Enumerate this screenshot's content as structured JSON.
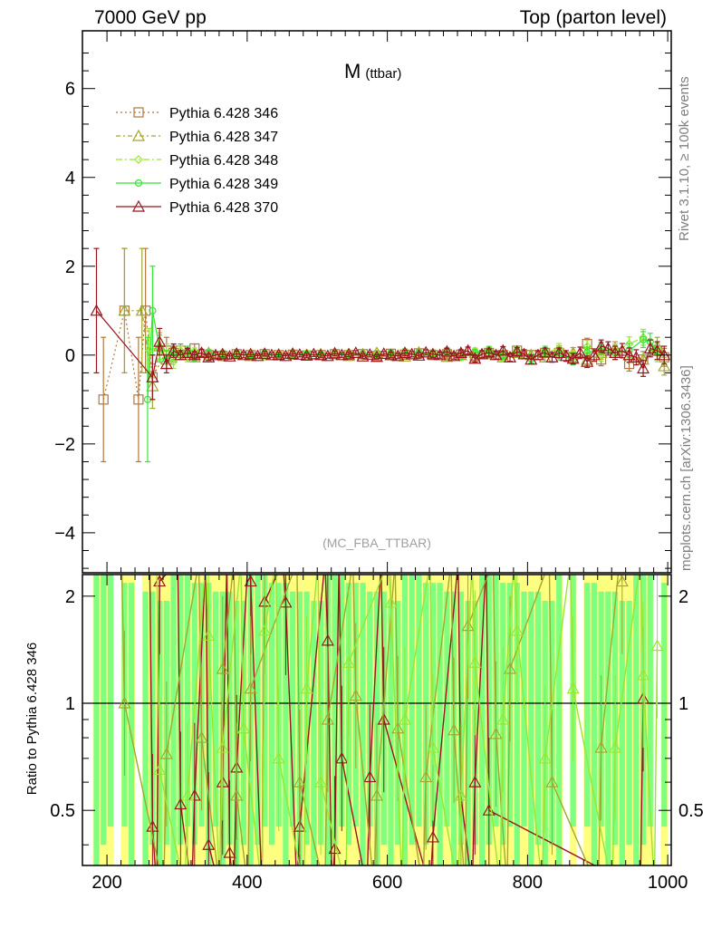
{
  "header": {
    "left": "7000 GeV pp",
    "right": "Top (parton level)"
  },
  "side_labels": {
    "rivet": "Rivet 3.1.10, ≥ 100k events",
    "mcplots": "mcplots.cern.ch [arXiv:1306.3436]"
  },
  "chart_data": [
    {
      "type": "line",
      "title": "M",
      "title_sub": "(ttbar)",
      "analysis_tag": "(MC_FBA_TTBAR)",
      "xlim": [
        165,
        1005
      ],
      "ylim": [
        -4.9,
        7.3
      ],
      "x_ticks": [
        200,
        400,
        600,
        800,
        1000
      ],
      "y_ticks": [
        -4,
        -2,
        0,
        2,
        4,
        6
      ],
      "y_tick_labels": [
        "−4",
        "−2",
        "0",
        "2",
        "4",
        "6"
      ],
      "legend_position": "top-left",
      "series": [
        {
          "name": "Pythia 6.428 346",
          "color": "#b2773c",
          "marker": "square",
          "dash": "2,3",
          "x": [
            195,
            225,
            245,
            255,
            265,
            285,
            295,
            305,
            315,
            325,
            345,
            365,
            385,
            405,
            425,
            445,
            465,
            485,
            505,
            525,
            545,
            565,
            585,
            605,
            625,
            645,
            665,
            685,
            705,
            725,
            745,
            765,
            785,
            805,
            825,
            845,
            865,
            885,
            905,
            925,
            945,
            965,
            985,
            995
          ],
          "y": [
            -1.0,
            1.0,
            -1.0,
            1.0,
            -0.5,
            0.1,
            0.05,
            0.1,
            0.0,
            0.15,
            0.0,
            -0.02,
            0.02,
            0.0,
            0.02,
            0.0,
            0.01,
            -0.01,
            0.0,
            0.02,
            0.0,
            0.02,
            -0.02,
            0.03,
            0.01,
            0.04,
            0.0,
            0.02,
            0.01,
            -0.03,
            0.05,
            0.0,
            0.1,
            0.0,
            0.05,
            0.05,
            -0.05,
            0.25,
            -0.1,
            0.05,
            -0.2,
            -0.1,
            0.1,
            -0.05
          ],
          "err": [
            1.4,
            1.4,
            1.4,
            1.4,
            0.5,
            0.3,
            0.2,
            0.15,
            0.1,
            0.1,
            0.08,
            0.06,
            0.06,
            0.05,
            0.05,
            0.05,
            0.05,
            0.05,
            0.05,
            0.05,
            0.05,
            0.05,
            0.05,
            0.06,
            0.06,
            0.06,
            0.07,
            0.07,
            0.07,
            0.08,
            0.08,
            0.09,
            0.09,
            0.1,
            0.1,
            0.11,
            0.12,
            0.13,
            0.14,
            0.15,
            0.16,
            0.18,
            0.2,
            0.2
          ]
        },
        {
          "name": "Pythia 6.428 347",
          "color": "#a5a52f",
          "marker": "triangle",
          "dash": "5,3,2,3",
          "x": [
            225,
            250,
            265,
            275,
            285,
            295,
            305,
            315,
            325,
            345,
            365,
            385,
            405,
            425,
            445,
            465,
            485,
            505,
            525,
            545,
            565,
            585,
            605,
            625,
            645,
            665,
            685,
            705,
            725,
            745,
            765,
            785,
            805,
            825,
            845,
            865,
            885,
            905,
            925,
            945,
            965,
            985,
            995
          ],
          "y": [
            1.0,
            1.0,
            -0.7,
            0.2,
            -0.1,
            0.1,
            0.0,
            0.05,
            -0.05,
            0.05,
            0.0,
            0.03,
            -0.02,
            0.02,
            -0.01,
            0.03,
            0.0,
            0.02,
            0.04,
            -0.02,
            0.02,
            0.05,
            0.0,
            -0.03,
            0.06,
            0.02,
            -0.04,
            0.0,
            0.05,
            0.02,
            -0.05,
            0.05,
            0.0,
            -0.05,
            0.1,
            0.05,
            -0.1,
            0.05,
            0.15,
            0.0,
            -0.1,
            0.2,
            -0.25
          ],
          "err": [
            1.4,
            1.4,
            0.5,
            0.3,
            0.2,
            0.15,
            0.1,
            0.1,
            0.08,
            0.07,
            0.06,
            0.06,
            0.05,
            0.05,
            0.05,
            0.05,
            0.05,
            0.05,
            0.05,
            0.05,
            0.05,
            0.05,
            0.06,
            0.06,
            0.06,
            0.07,
            0.07,
            0.07,
            0.08,
            0.08,
            0.09,
            0.09,
            0.1,
            0.1,
            0.11,
            0.12,
            0.13,
            0.14,
            0.15,
            0.16,
            0.18,
            0.2,
            0.2
          ]
        },
        {
          "name": "Pythia 6.428 348",
          "color": "#99e632",
          "marker": "diamond",
          "dash": "7,3,2,3",
          "x": [
            260,
            275,
            285,
            295,
            305,
            315,
            325,
            345,
            365,
            385,
            405,
            425,
            445,
            465,
            485,
            505,
            525,
            545,
            565,
            585,
            605,
            625,
            645,
            665,
            685,
            705,
            725,
            745,
            765,
            785,
            805,
            825,
            845,
            865,
            885,
            905,
            925,
            945,
            965,
            985
          ],
          "y": [
            0.1,
            0.2,
            0.05,
            -0.15,
            0.1,
            -0.05,
            0.08,
            -0.03,
            0.05,
            0.0,
            0.03,
            -0.03,
            0.04,
            0.0,
            0.05,
            -0.02,
            0.03,
            0.06,
            -0.03,
            0.02,
            -0.04,
            0.08,
            0.0,
            0.05,
            0.1,
            -0.05,
            0.08,
            0.12,
            -0.05,
            0.1,
            -0.1,
            0.05,
            0.15,
            -0.05,
            0.2,
            0.0,
            0.1,
            0.25,
            0.4,
            0.05
          ],
          "err": [
            0.5,
            0.3,
            0.2,
            0.15,
            0.1,
            0.1,
            0.08,
            0.07,
            0.06,
            0.06,
            0.05,
            0.05,
            0.05,
            0.05,
            0.05,
            0.05,
            0.05,
            0.05,
            0.05,
            0.05,
            0.06,
            0.06,
            0.06,
            0.07,
            0.07,
            0.07,
            0.08,
            0.08,
            0.09,
            0.09,
            0.1,
            0.1,
            0.11,
            0.12,
            0.13,
            0.14,
            0.15,
            0.16,
            0.18,
            0.2
          ]
        },
        {
          "name": "Pythia 6.428 349",
          "color": "#33e633",
          "marker": "circle",
          "dash": "",
          "x": [
            258,
            265,
            275,
            285,
            295,
            305,
            315,
            325,
            345,
            365,
            385,
            405,
            425,
            445,
            465,
            485,
            505,
            525,
            545,
            565,
            585,
            605,
            625,
            645,
            665,
            685,
            705,
            725,
            745,
            765,
            785,
            805,
            825,
            845,
            865,
            885,
            905,
            925,
            945,
            965,
            975,
            985
          ],
          "y": [
            -1.0,
            1.0,
            0.15,
            -0.1,
            0.05,
            0.0,
            0.1,
            -0.05,
            0.05,
            0.0,
            0.03,
            0.0,
            0.04,
            -0.02,
            0.03,
            0.01,
            0.02,
            0.04,
            0.0,
            0.03,
            -0.02,
            0.05,
            0.0,
            0.06,
            0.02,
            0.08,
            -0.03,
            0.05,
            0.1,
            0.0,
            0.05,
            -0.08,
            0.1,
            0.0,
            -0.1,
            0.05,
            0.15,
            0.05,
            0.1,
            0.35,
            0.3,
            0.1
          ],
          "err": [
            1.4,
            1.0,
            0.3,
            0.2,
            0.15,
            0.1,
            0.1,
            0.08,
            0.07,
            0.06,
            0.06,
            0.05,
            0.05,
            0.05,
            0.05,
            0.05,
            0.05,
            0.05,
            0.05,
            0.05,
            0.05,
            0.06,
            0.06,
            0.06,
            0.07,
            0.07,
            0.07,
            0.08,
            0.08,
            0.09,
            0.09,
            0.1,
            0.1,
            0.11,
            0.12,
            0.13,
            0.14,
            0.15,
            0.16,
            0.18,
            0.19,
            0.2
          ]
        },
        {
          "name": "Pythia 6.428 370",
          "color": "#99141e",
          "marker": "triangle",
          "dash": "",
          "x": [
            185,
            265,
            275,
            285,
            295,
            305,
            315,
            325,
            335,
            345,
            355,
            365,
            375,
            385,
            395,
            405,
            415,
            425,
            435,
            445,
            455,
            465,
            475,
            485,
            495,
            505,
            515,
            525,
            535,
            545,
            555,
            565,
            575,
            585,
            595,
            605,
            615,
            625,
            635,
            645,
            655,
            665,
            675,
            685,
            695,
            705,
            715,
            725,
            735,
            745,
            755,
            765,
            775,
            785,
            795,
            805,
            815,
            825,
            835,
            845,
            855,
            865,
            875,
            885,
            895,
            905,
            915,
            925,
            935,
            945,
            955,
            965,
            975,
            985,
            995
          ],
          "y": [
            1.0,
            -0.5,
            0.3,
            -0.2,
            0.1,
            0.0,
            0.05,
            0.0,
            0.05,
            -0.05,
            0.0,
            0.02,
            -0.03,
            0.03,
            0.0,
            0.02,
            -0.02,
            0.03,
            0.0,
            0.01,
            -0.02,
            0.03,
            0.01,
            -0.01,
            0.02,
            0.0,
            -0.02,
            0.04,
            0.0,
            0.02,
            0.05,
            -0.03,
            0.01,
            -0.04,
            0.03,
            0.0,
            -0.02,
            0.05,
            0.02,
            -0.01,
            0.06,
            0.02,
            0.0,
            0.08,
            -0.02,
            0.05,
            0.1,
            -0.08,
            0.02,
            0.06,
            0.0,
            0.1,
            -0.05,
            0.08,
            0.02,
            -0.1,
            0.0,
            0.06,
            -0.05,
            0.05,
            -0.02,
            -0.08,
            0.05,
            -0.15,
            0.0,
            0.2,
            0.15,
            0.05,
            0.1,
            0.0,
            -0.05,
            -0.3,
            0.15,
            0.1,
            0.0
          ],
          "err": [
            1.4,
            0.5,
            0.3,
            0.2,
            0.15,
            0.1,
            0.1,
            0.08,
            0.08,
            0.07,
            0.07,
            0.06,
            0.06,
            0.06,
            0.06,
            0.05,
            0.05,
            0.05,
            0.05,
            0.05,
            0.05,
            0.05,
            0.05,
            0.05,
            0.05,
            0.05,
            0.05,
            0.05,
            0.05,
            0.05,
            0.05,
            0.05,
            0.05,
            0.05,
            0.05,
            0.06,
            0.06,
            0.06,
            0.06,
            0.06,
            0.06,
            0.07,
            0.07,
            0.07,
            0.07,
            0.07,
            0.08,
            0.08,
            0.08,
            0.08,
            0.09,
            0.09,
            0.09,
            0.09,
            0.1,
            0.1,
            0.1,
            0.1,
            0.11,
            0.11,
            0.12,
            0.12,
            0.13,
            0.13,
            0.14,
            0.14,
            0.15,
            0.15,
            0.16,
            0.16,
            0.17,
            0.18,
            0.19,
            0.2,
            0.2
          ]
        }
      ]
    },
    {
      "type": "line",
      "ylabel": "Ratio to Pythia 6.428 346",
      "xlim": [
        165,
        1005
      ],
      "ylim": [
        0.35,
        2.3
      ],
      "x_ticks": [
        200,
        400,
        600,
        800,
        1000
      ],
      "x_tick_labels": [
        "200",
        "400",
        "600",
        "800",
        "1000"
      ],
      "y_ticks": [
        0.5,
        1,
        2
      ],
      "y_tick_labels": [
        "0.5",
        "1",
        "2"
      ],
      "reference_line": 1.0,
      "band_colors": {
        "inner": "#7fff7f",
        "outer": "#ffff7f"
      },
      "series": [
        {
          "name": "Pythia 6.428 370",
          "color": "#99141e",
          "x": [
            265,
            275,
            305,
            325,
            345,
            365,
            375,
            385,
            405,
            425,
            455,
            475,
            515,
            525,
            535,
            575,
            595,
            665,
            705,
            725,
            745,
            965
          ],
          "y": [
            0.45,
            2.2,
            0.52,
            0.55,
            0.4,
            0.6,
            0.38,
            0.66,
            2.2,
            1.93,
            1.92,
            0.45,
            1.5,
            0.39,
            0.7,
            0.62,
            0.9,
            0.42,
            0.55,
            0.6,
            0.5,
            1.03
          ]
        },
        {
          "name": "Pythia 6.428 347",
          "color": "#a5a52f",
          "x": [
            225,
            285,
            335,
            365,
            385,
            405,
            475,
            515,
            555,
            585,
            615,
            655,
            695,
            715,
            755,
            775,
            835,
            905,
            935
          ],
          "y": [
            1.0,
            0.72,
            0.8,
            1.25,
            0.55,
            1.1,
            0.6,
            0.9,
            1.05,
            0.55,
            0.85,
            0.62,
            0.84,
            1.65,
            0.82,
            1.25,
            0.6,
            0.75,
            2.2
          ]
        },
        {
          "name": "Pythia 6.428 348",
          "color": "#99e632",
          "x": [
            275,
            315,
            345,
            365,
            395,
            425,
            445,
            485,
            505,
            545,
            605,
            625,
            665,
            705,
            725,
            765,
            785,
            825,
            865,
            925,
            965,
            985
          ],
          "y": [
            0.65,
            0.55,
            1.55,
            0.75,
            0.85,
            1.6,
            0.7,
            1.1,
            0.6,
            1.3,
            1.92,
            0.9,
            0.75,
            0.55,
            1.3,
            0.9,
            1.6,
            0.7,
            1.1,
            0.75,
            1.2,
            1.45
          ]
        }
      ]
    }
  ]
}
